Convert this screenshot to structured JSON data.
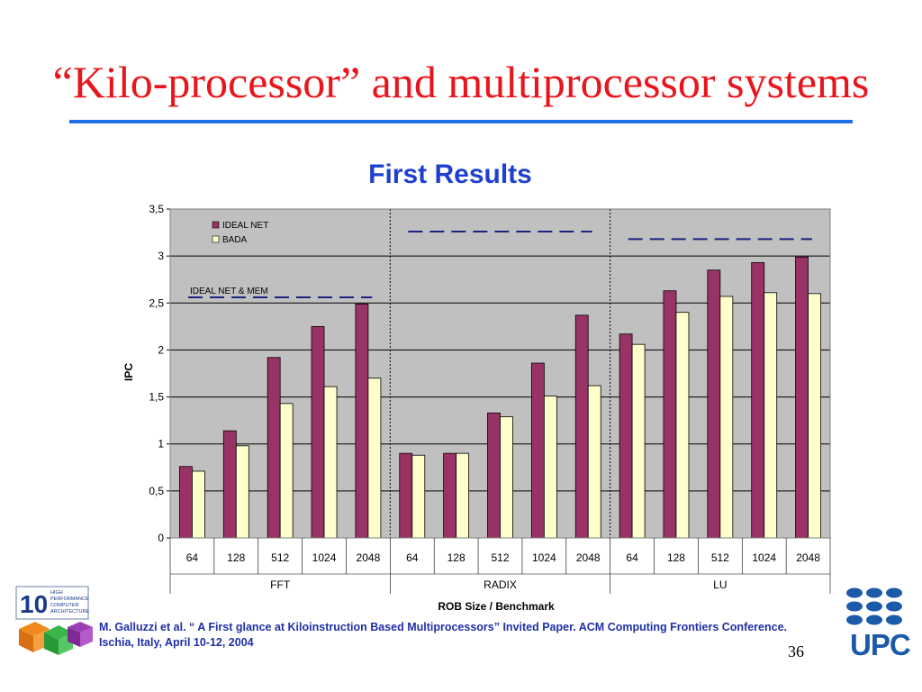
{
  "slide": {
    "title": "“Kilo-processor” and multiprocessor systems",
    "page_number": "36",
    "citation": "M. Galluzzi et al. “ A First glance at Kiloinstruction Based Multiprocessors” Invited Paper. ACM Computing Frontiers Conference. Ischia, Italy, April 10-12, 2004",
    "logo_left_lines": [
      "HIGH",
      "PERFORMANCE",
      "COMPUTER",
      "ARCHITECTURE"
    ],
    "logo_left_mark": "10",
    "logo_right_text": "UPC"
  },
  "chart_data": {
    "type": "bar",
    "title": "First Results",
    "xlabel": "ROB Size / Benchmark",
    "ylabel": "IPC",
    "ylim": [
      0,
      3.5
    ],
    "yticks": [
      "0",
      "0,5",
      "1",
      "1,5",
      "2",
      "2,5",
      "3",
      "3,5"
    ],
    "ytick_values": [
      0,
      0.5,
      1,
      1.5,
      2,
      2.5,
      3,
      3.5
    ],
    "grid": true,
    "legend_position": "top-left",
    "groups": [
      "FFT",
      "RADIX",
      "LU"
    ],
    "categories": [
      "64",
      "128",
      "512",
      "1024",
      "2048"
    ],
    "series": [
      {
        "name": "IDEAL NET",
        "color": "#993366",
        "values": [
          [
            0.76,
            1.14,
            1.92,
            2.25,
            2.49
          ],
          [
            0.9,
            0.9,
            1.33,
            1.86,
            2.37
          ],
          [
            2.17,
            2.63,
            2.85,
            2.93,
            2.99
          ]
        ]
      },
      {
        "name": "BADA",
        "color": "#ffffcc",
        "values": [
          [
            0.71,
            0.98,
            1.43,
            1.61,
            1.7
          ],
          [
            0.88,
            0.9,
            1.29,
            1.51,
            1.62
          ],
          [
            2.06,
            2.4,
            2.57,
            2.61,
            2.6
          ]
        ]
      }
    ],
    "reference_lines": [
      2.56,
      3.26,
      3.18
    ],
    "reference_label": "IDEAL NET & MEM",
    "colors": {
      "plot_bg": "#c0c0c0",
      "reference_line": "#1a237e",
      "title": "#1f3fcf"
    }
  }
}
